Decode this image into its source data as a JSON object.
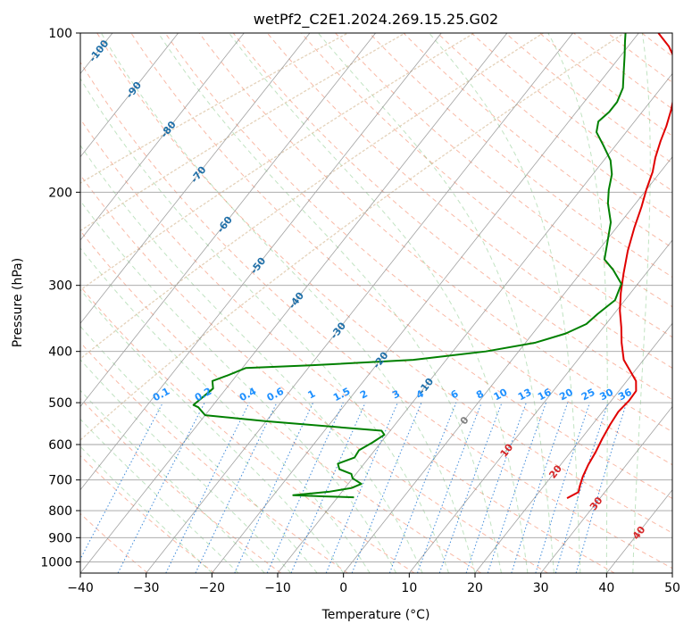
{
  "chart_data": {
    "type": "skew-t",
    "title": "wetPf2_C2E1.2024.269.15.25.G02",
    "xlabel": "Temperature (°C)",
    "ylabel": "Pressure (hPa)",
    "xlim": [
      -40,
      50
    ],
    "ylim": [
      1050,
      100
    ],
    "y_scale": "log",
    "x_ticks": [
      -40,
      -30,
      -20,
      -10,
      0,
      10,
      20,
      30,
      40,
      50
    ],
    "x_tick_labels": [
      "−40",
      "−30",
      "−20",
      "−10",
      "0",
      "10",
      "20",
      "30",
      "40",
      "50"
    ],
    "y_ticks": [
      100,
      200,
      300,
      400,
      500,
      600,
      700,
      800,
      900,
      1000
    ],
    "y_tick_labels": [
      "100",
      "200",
      "300",
      "400",
      "500",
      "600",
      "700",
      "800",
      "900",
      "1000"
    ],
    "grid": true,
    "isotherm_labels": [
      {
        "value": -100,
        "text": "-100"
      },
      {
        "value": -90,
        "text": "-90"
      },
      {
        "value": -80,
        "text": "-80"
      },
      {
        "value": -70,
        "text": "-70"
      },
      {
        "value": -60,
        "text": "-60"
      },
      {
        "value": -50,
        "text": "-50"
      },
      {
        "value": -40,
        "text": "-40"
      },
      {
        "value": -30,
        "text": "-30"
      },
      {
        "value": -20,
        "text": "-20"
      },
      {
        "value": -10,
        "text": "-10"
      },
      {
        "value": 0,
        "text": "0"
      },
      {
        "value": 10,
        "text": "10"
      },
      {
        "value": 20,
        "text": "20"
      },
      {
        "value": 30,
        "text": "30"
      },
      {
        "value": 40,
        "text": "40"
      }
    ],
    "mixing_ratio_labels": [
      "0.1",
      "0.2",
      "0.4",
      "0.6",
      "1",
      "1.5",
      "2",
      "3",
      "4",
      "6",
      "8",
      "10",
      "13",
      "16",
      "20",
      "25",
      "30",
      "36"
    ],
    "mixing_ratio_values": [
      0.1,
      0.2,
      0.4,
      0.6,
      1,
      1.5,
      2,
      3,
      4,
      6,
      8,
      10,
      13,
      16,
      20,
      25,
      30,
      36
    ],
    "series": [
      {
        "color": "#e00000",
        "points": [
          [
            25,
            758
          ],
          [
            26,
            738
          ],
          [
            25.5,
            720
          ],
          [
            24.8,
            690
          ],
          [
            24.2,
            655
          ],
          [
            23.8,
            620
          ],
          [
            23.2,
            585
          ],
          [
            22.7,
            550
          ],
          [
            22.4,
            520
          ],
          [
            22.7,
            495
          ],
          [
            22.6,
            475
          ],
          [
            21.4,
            455
          ],
          [
            19.8,
            440
          ],
          [
            17,
            415
          ],
          [
            14.6,
            385
          ],
          [
            12.7,
            360
          ],
          [
            10.5,
            335
          ],
          [
            8.5,
            310
          ],
          [
            6.6,
            285
          ],
          [
            4.5,
            258
          ],
          [
            2.7,
            233
          ],
          [
            1.3,
            213
          ],
          [
            0,
            198
          ],
          [
            -1.2,
            183
          ],
          [
            -2.5,
            172
          ],
          [
            -3.7,
            160
          ],
          [
            -4.6,
            150
          ],
          [
            -5.8,
            140
          ],
          [
            -7.3,
            130
          ],
          [
            -9,
            121
          ],
          [
            -11,
            113
          ],
          [
            -13.8,
            106
          ],
          [
            -17,
            100
          ]
        ]
      },
      {
        "color": "#008000",
        "points": [
          [
            -7.5,
            755
          ],
          [
            -12,
            752
          ],
          [
            -17,
            748
          ],
          [
            -12,
            737
          ],
          [
            -9,
            725
          ],
          [
            -8,
            712
          ],
          [
            -10,
            695
          ],
          [
            -10.7,
            682
          ],
          [
            -13.1,
            668
          ],
          [
            -14,
            652
          ],
          [
            -12.2,
            635
          ],
          [
            -12.4,
            615
          ],
          [
            -11.3,
            595
          ],
          [
            -10.4,
            575
          ],
          [
            -11.3,
            565
          ],
          [
            -30,
            542
          ],
          [
            -40,
            528
          ],
          [
            -42,
            510
          ],
          [
            -43,
            505
          ],
          [
            -42,
            470
          ],
          [
            -43,
            455
          ],
          [
            -41.5,
            445
          ],
          [
            -39.5,
            430
          ],
          [
            -30,
            425
          ],
          [
            -15,
            415
          ],
          [
            -5,
            400
          ],
          [
            1.5,
            385
          ],
          [
            5,
            370
          ],
          [
            7,
            355
          ],
          [
            7.5,
            340
          ],
          [
            8.5,
            320
          ],
          [
            7.5,
            298
          ],
          [
            4.5,
            280
          ],
          [
            2,
            268
          ],
          [
            0.5,
            250
          ],
          [
            -1.5,
            228
          ],
          [
            -4.2,
            210
          ],
          [
            -5.7,
            198
          ],
          [
            -7.1,
            185
          ],
          [
            -9,
            174
          ],
          [
            -11.9,
            163
          ],
          [
            -14.5,
            154
          ],
          [
            -15.5,
            147
          ],
          [
            -15,
            141
          ],
          [
            -15,
            135
          ],
          [
            -15.8,
            127
          ],
          [
            -17.7,
            118
          ],
          [
            -19.5,
            110
          ],
          [
            -21,
            104
          ],
          [
            -22,
            100
          ]
        ]
      }
    ]
  }
}
